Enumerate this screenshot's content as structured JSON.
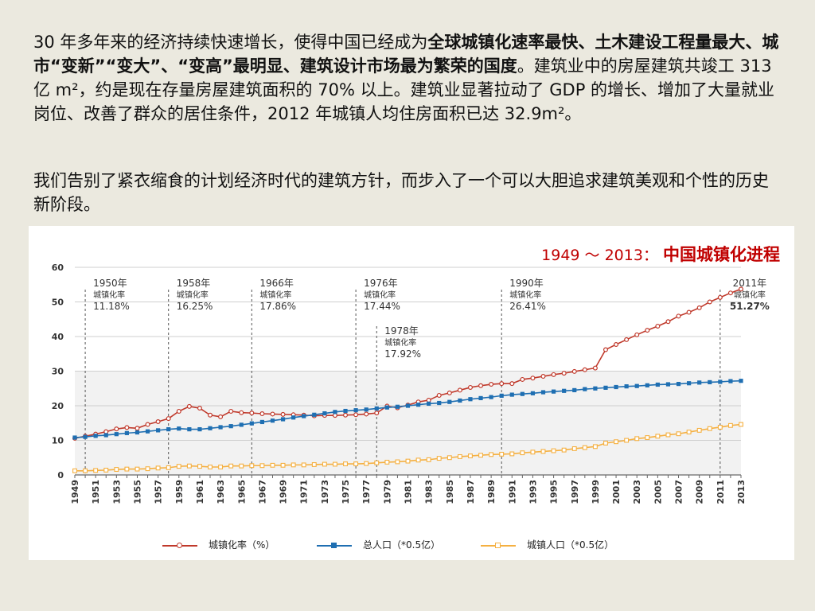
{
  "text": {
    "p1_a": "30 年多年来的经济持续快速增长，使得中国已经成为",
    "p1_b": "全球城镇化速率最快、土木建设工程量最大、城市“变新”“变大”、“变高”最明显、建筑设计市场最为繁荣的国度",
    "p1_c": "。建筑业中的房屋建筑共竣工 313 亿 m²，约是现在存量房屋建筑面积的 70% 以上。建筑业显著拉动了 GDP 的增长、增加了大量就业岗位、改善了群众的居住条件，2012 年城镇人均住房面积已达 32.9m²。",
    "p2": "我们告别了紧衣缩食的计划经济时代的建筑方针，而步入了一个可以大胆追求建筑美观和个性的历史新阶段。"
  },
  "colors": {
    "urban_rate": "#c0392b",
    "total_pop": "#1f6fb2",
    "urban_pop": "#f5b041",
    "title": "#c00000"
  },
  "chart_data": {
    "type": "line",
    "title_prefix": "1949 ～ 2013：",
    "title": "中国城镇化进程",
    "ylim": [
      0,
      60
    ],
    "yticks": [
      0,
      10,
      20,
      30,
      40,
      50,
      60
    ],
    "xlabels": [
      "1949",
      "1951",
      "1953",
      "1955",
      "1957",
      "1959",
      "1961",
      "1963",
      "1965",
      "1967",
      "1969",
      "1971",
      "1973",
      "1975",
      "1977",
      "1979",
      "1981",
      "1983",
      "1985",
      "1987",
      "1989",
      "1991",
      "1993",
      "1995",
      "1997",
      "1999",
      "2001",
      "2003",
      "2005",
      "2007",
      "2009",
      "2011",
      "2013"
    ],
    "x": [
      1949,
      1950,
      1951,
      1952,
      1953,
      1954,
      1955,
      1956,
      1957,
      1958,
      1959,
      1960,
      1961,
      1962,
      1963,
      1964,
      1965,
      1966,
      1967,
      1968,
      1969,
      1970,
      1971,
      1972,
      1973,
      1974,
      1975,
      1976,
      1977,
      1978,
      1979,
      1980,
      1981,
      1982,
      1983,
      1984,
      1985,
      1986,
      1987,
      1988,
      1989,
      1990,
      1991,
      1992,
      1993,
      1994,
      1995,
      1996,
      1997,
      1998,
      1999,
      2000,
      2001,
      2002,
      2003,
      2004,
      2005,
      2006,
      2007,
      2008,
      2009,
      2010,
      2011,
      2012,
      2013
    ],
    "series": [
      {
        "name": "城镇化率（%）",
        "key": "urban_rate",
        "marker": "circle",
        "values": [
          10.6,
          11.2,
          11.8,
          12.5,
          13.3,
          13.7,
          13.5,
          14.6,
          15.4,
          16.3,
          18.4,
          19.8,
          19.3,
          17.3,
          16.8,
          18.4,
          18.0,
          17.9,
          17.7,
          17.6,
          17.5,
          17.4,
          17.3,
          17.1,
          17.2,
          17.2,
          17.3,
          17.4,
          17.6,
          17.9,
          19.9,
          19.4,
          20.2,
          21.1,
          21.6,
          23.0,
          23.7,
          24.5,
          25.3,
          25.8,
          26.2,
          26.4,
          26.4,
          27.6,
          28.0,
          28.5,
          29.0,
          29.4,
          29.9,
          30.4,
          30.9,
          36.2,
          37.7,
          39.1,
          40.5,
          41.8,
          43.0,
          44.3,
          45.9,
          47.0,
          48.3,
          50.0,
          51.3,
          52.6,
          53.7
        ]
      },
      {
        "name": "总人口（*0.5亿）",
        "key": "total_pop",
        "marker": "square",
        "values": [
          10.8,
          11.0,
          11.3,
          11.5,
          11.8,
          12.1,
          12.3,
          12.6,
          12.9,
          13.2,
          13.4,
          13.2,
          13.2,
          13.5,
          13.8,
          14.1,
          14.5,
          14.9,
          15.3,
          15.7,
          16.1,
          16.6,
          17.0,
          17.4,
          17.8,
          18.2,
          18.5,
          18.7,
          18.9,
          19.2,
          19.5,
          19.7,
          20.0,
          20.3,
          20.6,
          20.8,
          21.1,
          21.5,
          21.9,
          22.2,
          22.5,
          22.9,
          23.2,
          23.4,
          23.6,
          23.9,
          24.1,
          24.3,
          24.5,
          24.8,
          25.0,
          25.2,
          25.4,
          25.6,
          25.7,
          25.9,
          26.1,
          26.2,
          26.3,
          26.5,
          26.7,
          26.8,
          26.9,
          27.1,
          27.2
        ]
      },
      {
        "name": "城镇人口（*0.5亿）",
        "key": "urban_pop",
        "marker": "square-open",
        "values": [
          1.2,
          1.2,
          1.3,
          1.4,
          1.6,
          1.7,
          1.7,
          1.8,
          2.0,
          2.1,
          2.5,
          2.6,
          2.5,
          2.3,
          2.3,
          2.6,
          2.6,
          2.7,
          2.7,
          2.8,
          2.8,
          2.9,
          2.9,
          3.0,
          3.1,
          3.1,
          3.2,
          3.2,
          3.3,
          3.5,
          3.7,
          3.8,
          4.0,
          4.3,
          4.4,
          4.8,
          5.0,
          5.3,
          5.5,
          5.7,
          5.9,
          6.0,
          6.1,
          6.4,
          6.6,
          6.8,
          7.0,
          7.2,
          7.6,
          7.9,
          8.2,
          9.2,
          9.6,
          10.0,
          10.5,
          10.8,
          11.2,
          11.6,
          11.9,
          12.4,
          12.9,
          13.4,
          13.8,
          14.3,
          14.6
        ]
      }
    ],
    "annotations": [
      {
        "year": 1950,
        "y": 11.18,
        "label_year": "1950年",
        "label_sub": "城镇化率",
        "label_value": "11.18%"
      },
      {
        "year": 1958,
        "y": 16.25,
        "label_year": "1958年",
        "label_sub": "城镇化率",
        "label_value": "16.25%"
      },
      {
        "year": 1966,
        "y": 17.86,
        "label_year": "1966年",
        "label_sub": "城镇化率",
        "label_value": "17.86%"
      },
      {
        "year": 1976,
        "y": 17.44,
        "label_year": "1976年",
        "label_sub": "城镇化率",
        "label_value": "17.44%"
      },
      {
        "year": 1978,
        "y": 17.92,
        "label_year": "1978年",
        "label_sub": "城镇化率",
        "label_value": "17.92%"
      },
      {
        "year": 1990,
        "y": 26.41,
        "label_year": "1990年",
        "label_sub": "城镇化率",
        "label_value": "26.41%"
      },
      {
        "year": 2011,
        "y": 51.27,
        "label_year": "2011年",
        "label_sub": "城镇化率",
        "label_value": "51.27%"
      }
    ]
  }
}
